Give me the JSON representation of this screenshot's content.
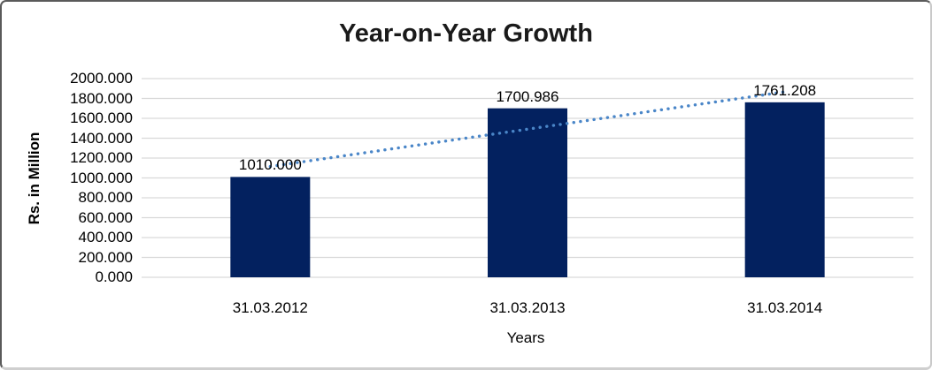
{
  "chart_data": {
    "type": "bar",
    "title": "Year-on-Year Growth",
    "xlabel": "Years",
    "ylabel": "Rs. in Million",
    "categories": [
      "31.03.2012",
      "31.03.2013",
      "31.03.2014"
    ],
    "values": [
      1010.0,
      1700.986,
      1761.208
    ],
    "value_labels": [
      "1010.000",
      "1700.986",
      "1761.208"
    ],
    "ylim": [
      0,
      2000
    ],
    "ytick_step": 200,
    "ytick_labels": [
      "0.000",
      "200.000",
      "400.000",
      "600.000",
      "800.000",
      "1000.000",
      "1200.000",
      "1400.000",
      "1600.000",
      "1800.000",
      "2000.000"
    ],
    "grid": true,
    "legend_position": "none",
    "colors": {
      "bar_fill": "#03215f",
      "trendline": "#4a86c8",
      "gridline": "#d9d9d9",
      "text": "#000000",
      "title_text": "#1a1a1a"
    },
    "trendline": {
      "style": "dotted",
      "type": "linear"
    }
  }
}
